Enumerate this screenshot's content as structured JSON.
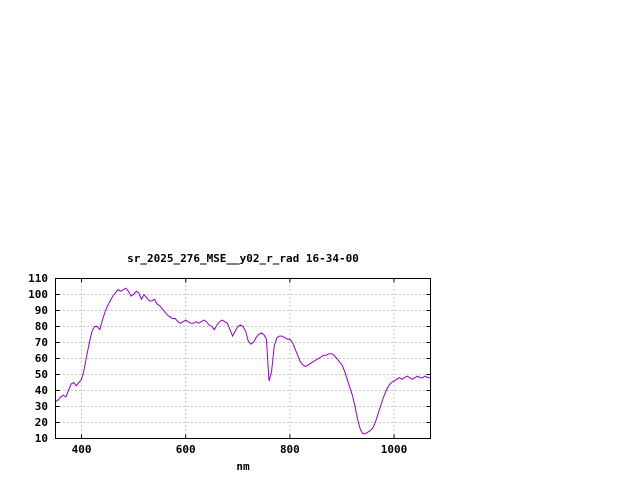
{
  "window": {
    "background": "#ffffff",
    "text_color": "#000000"
  },
  "chart_data": {
    "type": "line",
    "title": "sr_2025_276_MSE__y02_r_rad 16-34-00",
    "xlabel": "nm",
    "ylabel": "",
    "xlim": [
      350,
      1070
    ],
    "ylim": [
      10,
      110
    ],
    "x_ticks": [
      400,
      600,
      800,
      1000
    ],
    "y_ticks": [
      10,
      20,
      30,
      40,
      50,
      60,
      70,
      80,
      90,
      100,
      110
    ],
    "grid": true,
    "legend_position": "none",
    "line_color": "#9400d3",
    "border_color": "#000000",
    "series": [
      {
        "x_start": 350,
        "x_step": 5,
        "values": [
          33,
          34,
          36,
          37,
          36,
          40,
          44,
          45,
          43,
          45,
          47,
          53,
          62,
          70,
          77,
          80,
          80,
          78,
          84,
          89,
          93,
          96,
          99,
          101,
          103,
          102,
          103,
          104,
          102,
          99,
          100,
          102,
          101,
          97,
          100,
          98,
          96,
          96,
          97,
          94,
          93,
          91,
          89,
          87,
          86,
          85,
          85,
          83,
          82,
          83,
          84,
          83,
          82,
          82,
          83,
          82,
          83,
          84,
          83,
          81,
          80,
          78,
          81,
          83,
          84,
          83,
          82,
          78,
          74,
          77,
          80,
          81,
          80,
          77,
          71,
          69,
          70,
          73,
          75,
          76,
          75,
          72,
          46,
          52,
          68,
          73,
          74,
          74,
          73,
          72,
          72,
          70,
          66,
          62,
          58,
          56,
          55,
          56,
          57,
          58,
          59,
          60,
          61,
          62,
          62,
          63,
          63,
          62,
          60,
          58,
          56,
          52,
          47,
          42,
          37,
          30,
          22,
          16,
          13,
          13,
          14,
          15,
          17,
          21,
          26,
          31,
          36,
          40,
          43,
          45,
          46,
          47,
          48,
          47,
          48,
          49,
          48,
          47,
          48,
          49,
          48,
          48,
          49,
          48,
          48
        ]
      }
    ]
  }
}
